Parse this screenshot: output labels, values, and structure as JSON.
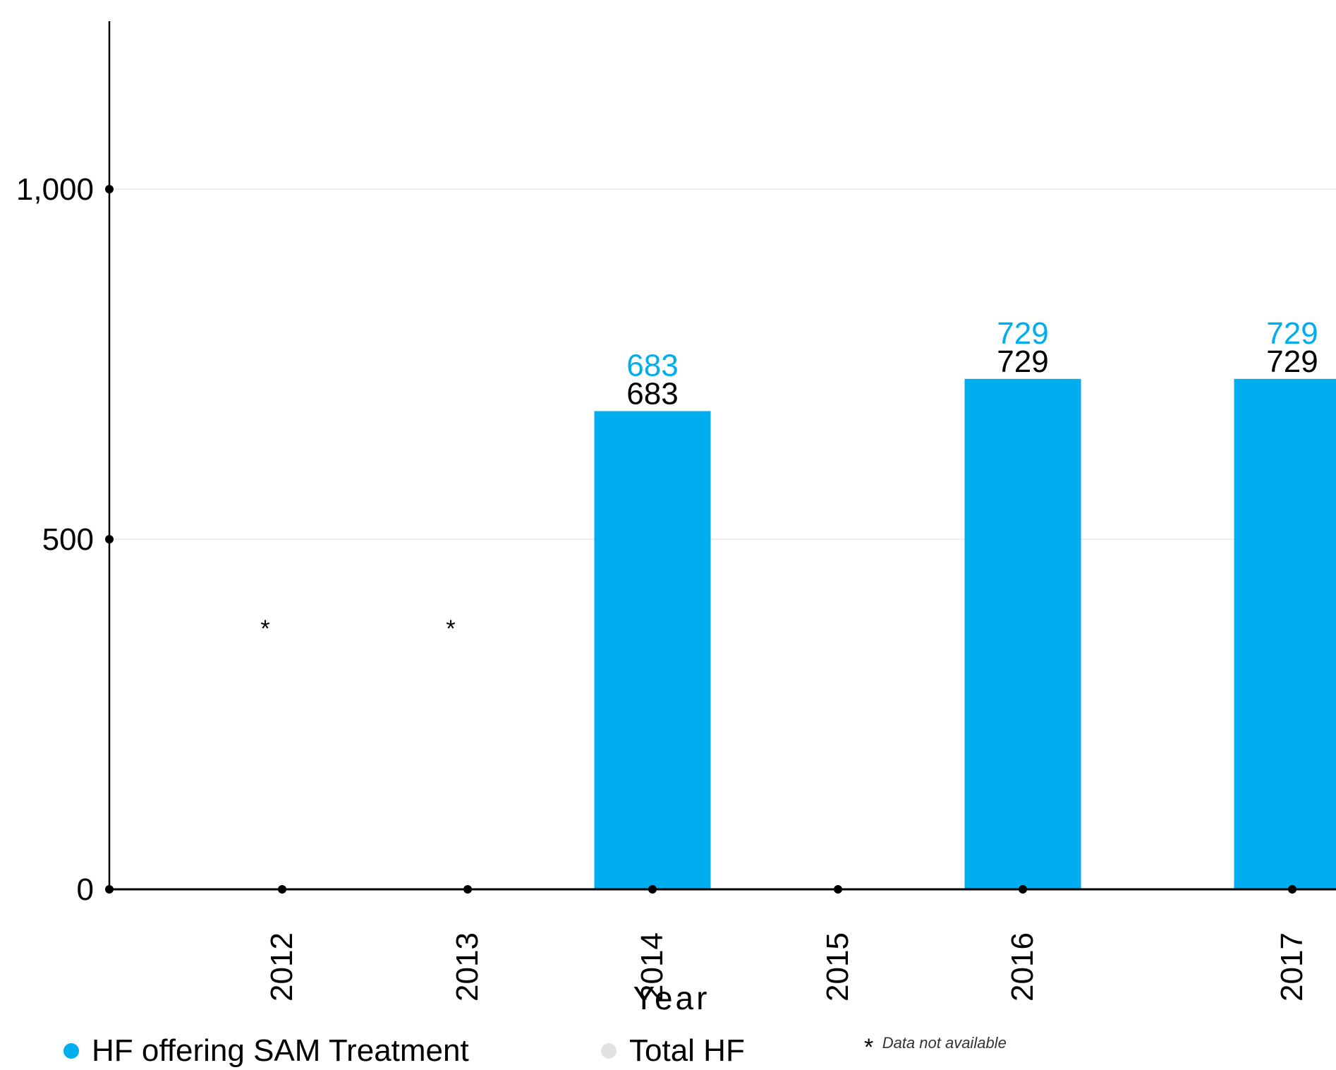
{
  "chart_data": {
    "type": "bar",
    "xlabel": "Year",
    "ylabel": "",
    "ylim": [
      0,
      1200
    ],
    "yticks": [
      0,
      500,
      1000
    ],
    "ytick_labels": [
      "0",
      "500",
      "1,000"
    ],
    "categories": [
      "2012",
      "2013",
      "2014",
      "2015",
      "2016",
      "2017"
    ],
    "series": [
      {
        "name": "HF offering SAM Treatment",
        "values": [
          null,
          null,
          683,
          null,
          729,
          729
        ]
      },
      {
        "name": "Total HF",
        "values": [
          null,
          null,
          683,
          null,
          729,
          729
        ]
      }
    ],
    "not_available_marker": "*",
    "not_available_categories": [
      "2012",
      "2013"
    ],
    "grid": true,
    "legend_position": "bottom"
  },
  "legend": {
    "sam": "HF offering SAM Treatment",
    "total": "Total HF"
  },
  "note": {
    "star": "*",
    "text": "Data not available"
  },
  "colors": {
    "sam": "#00ADEE",
    "total": "#E2E2E0",
    "axis": "#000000",
    "grid": "#EEEEEE"
  }
}
